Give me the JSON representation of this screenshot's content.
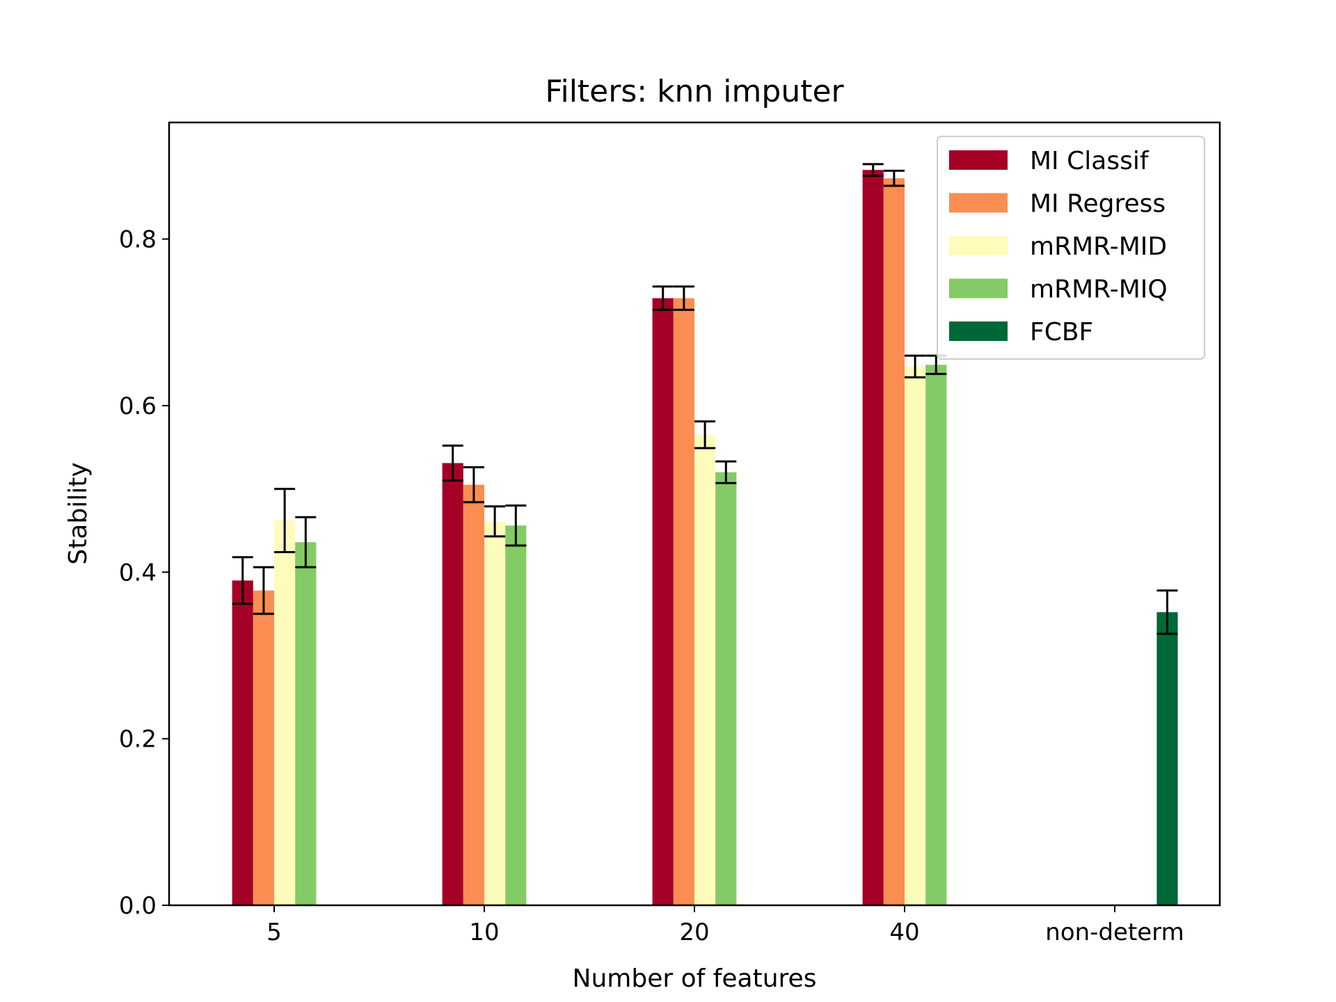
{
  "chart_data": {
    "type": "bar",
    "title": "Filters: knn imputer",
    "xlabel": "Number of features",
    "ylabel": "Stability",
    "categories": [
      "5",
      "10",
      "20",
      "40",
      "non-determ"
    ],
    "ylim": [
      0,
      0.94
    ],
    "yticks": [
      0.0,
      0.2,
      0.4,
      0.6,
      0.8
    ],
    "ytick_labels": [
      "0.0",
      "0.2",
      "0.4",
      "0.6",
      "0.8"
    ],
    "grid": false,
    "legend_position": "top-right",
    "series": [
      {
        "name": "MI Classif",
        "color": "#a50026",
        "values": [
          0.39,
          0.531,
          0.729,
          0.883,
          null
        ],
        "errors": [
          0.028,
          0.021,
          0.014,
          0.007,
          null
        ]
      },
      {
        "name": "MI Regress",
        "color": "#fa8e52",
        "values": [
          0.378,
          0.505,
          0.729,
          0.873,
          null
        ],
        "errors": [
          0.028,
          0.021,
          0.014,
          0.009,
          null
        ]
      },
      {
        "name": "mRMR-MID",
        "color": "#fefcbb",
        "values": [
          0.462,
          0.461,
          0.565,
          0.647,
          null
        ],
        "errors": [
          0.038,
          0.018,
          0.016,
          0.013,
          null
        ]
      },
      {
        "name": "mRMR-MIQ",
        "color": "#84ca66",
        "values": [
          0.436,
          0.456,
          0.52,
          0.649,
          null
        ],
        "errors": [
          0.03,
          0.024,
          0.013,
          0.011,
          null
        ]
      },
      {
        "name": "FCBF",
        "color": "#006837",
        "values": [
          null,
          null,
          null,
          null,
          0.352
        ],
        "errors": [
          null,
          null,
          null,
          null,
          0.026
        ]
      }
    ]
  }
}
